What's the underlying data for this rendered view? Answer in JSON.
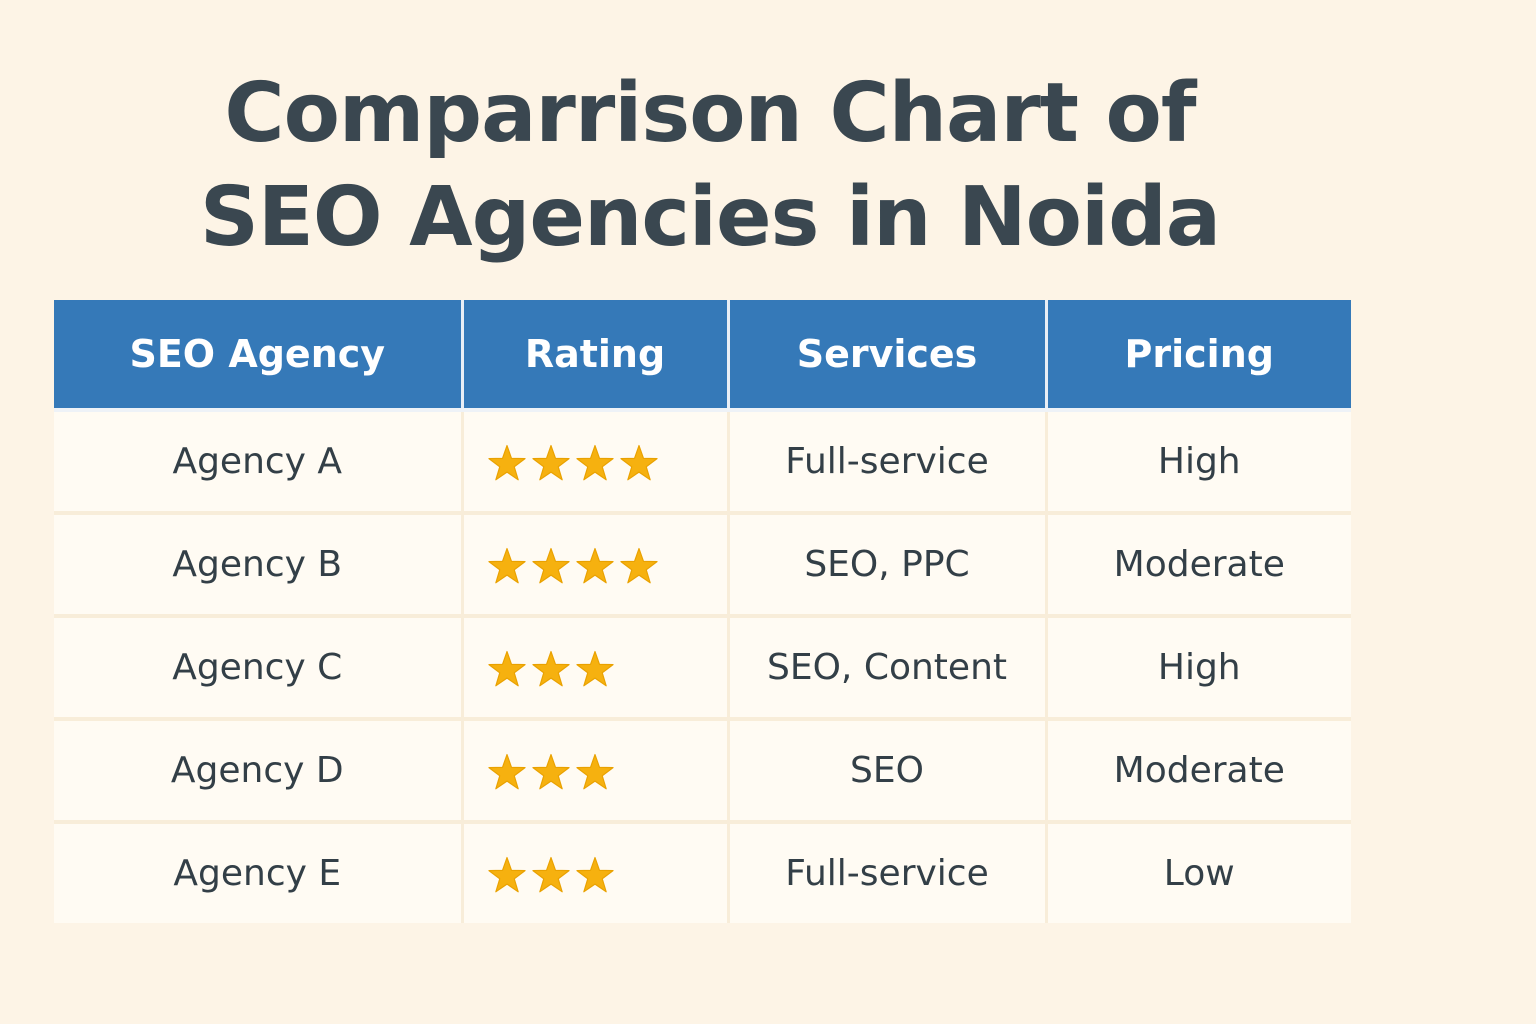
{
  "title": {
    "line1": "Comparrison Chart of",
    "line2": "SEO Agencies in Noida"
  },
  "table": {
    "headers": [
      "SEO Agency",
      "Rating",
      "Services",
      "Pricing"
    ],
    "rows": [
      {
        "agency": "Agency A",
        "rating": 4,
        "services": "Full-service",
        "pricing": "High"
      },
      {
        "agency": "Agency B",
        "rating": 4,
        "services": "SEO, PPC",
        "pricing": "Moderate"
      },
      {
        "agency": "Agency C",
        "rating": 3,
        "services": "SEO, Content",
        "pricing": "High"
      },
      {
        "agency": "Agency D",
        "rating": 3,
        "services": "SEO",
        "pricing": "Moderate"
      },
      {
        "agency": "Agency E",
        "rating": 3,
        "services": "Full-service",
        "pricing": "Low"
      }
    ]
  },
  "colors": {
    "background": "#fdf4e6",
    "header_bg": "#3579b8",
    "star": "#f6b10f",
    "text": "#333f47"
  },
  "icons": {
    "rating": "star-icon"
  },
  "chart_data": {
    "type": "table",
    "title": "Comparrison Chart of SEO Agencies in Noida",
    "columns": [
      "SEO Agency",
      "Rating",
      "Services",
      "Pricing"
    ],
    "rows": [
      [
        "Agency A",
        4,
        "Full-service",
        "High"
      ],
      [
        "Agency B",
        4,
        "SEO, PPC",
        "Moderate"
      ],
      [
        "Agency C",
        3,
        "SEO, Content",
        "High"
      ],
      [
        "Agency D",
        3,
        "SEO",
        "Moderate"
      ],
      [
        "Agency E",
        3,
        "Full-service",
        "Low"
      ]
    ]
  }
}
